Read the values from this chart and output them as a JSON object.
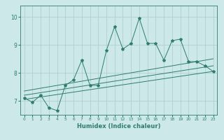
{
  "title": "",
  "xlabel": "Humidex (Indice chaleur)",
  "bg_color": "#cce8e8",
  "line_color": "#2e7d6e",
  "grid_color": "#aacccc",
  "xlim": [
    -0.5,
    23.5
  ],
  "ylim": [
    6.5,
    10.4
  ],
  "xticks": [
    0,
    1,
    2,
    3,
    4,
    5,
    6,
    7,
    8,
    9,
    10,
    11,
    12,
    13,
    14,
    15,
    16,
    17,
    18,
    19,
    20,
    21,
    22,
    23
  ],
  "yticks": [
    7,
    8,
    9,
    10
  ],
  "main_line_x": [
    0,
    1,
    2,
    3,
    4,
    5,
    6,
    7,
    8,
    9,
    10,
    11,
    12,
    13,
    14,
    15,
    16,
    17,
    18,
    19,
    20,
    21,
    22,
    23
  ],
  "main_line_y": [
    7.1,
    6.95,
    7.2,
    6.75,
    6.65,
    7.55,
    7.75,
    8.45,
    7.55,
    7.55,
    8.8,
    9.65,
    8.85,
    9.05,
    9.95,
    9.05,
    9.05,
    8.45,
    9.15,
    9.2,
    8.4,
    8.4,
    8.25,
    8.05
  ],
  "reg_lines": [
    {
      "x": [
        0,
        23
      ],
      "y": [
        7.05,
        8.05
      ]
    },
    {
      "x": [
        0,
        23
      ],
      "y": [
        7.2,
        8.25
      ]
    },
    {
      "x": [
        0,
        23
      ],
      "y": [
        7.35,
        8.5
      ]
    }
  ]
}
